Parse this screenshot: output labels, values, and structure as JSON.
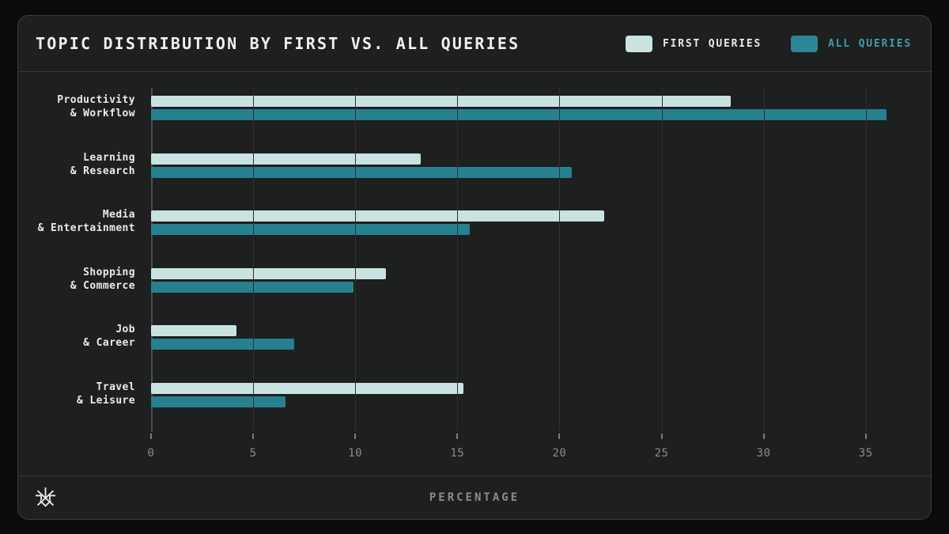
{
  "header": {
    "title": "TOPIC DISTRIBUTION BY FIRST VS. ALL QUERIES",
    "legend": [
      {
        "label": "FIRST QUERIES",
        "swatch_color": "#c9e3e1",
        "text_color": "#e9e9e7"
      },
      {
        "label": "ALL QUERIES",
        "swatch_color": "#2b8698",
        "text_color": "#3f9dad"
      }
    ]
  },
  "footer": {
    "xlabel": "PERCENTAGE",
    "logo_icon": "snowflake-logo"
  },
  "chart_data": {
    "type": "bar",
    "orientation": "horizontal",
    "title": "TOPIC DISTRIBUTION BY FIRST VS. ALL QUERIES",
    "categories": [
      "Productivity & Workflow",
      "Learning & Research",
      "Media & Entertainment",
      "Shopping & Commerce",
      "Job & Career",
      "Travel & Leisure"
    ],
    "category_lines": [
      [
        "Productivity",
        "& Workflow"
      ],
      [
        "Learning",
        "& Research"
      ],
      [
        "Media",
        "& Entertainment"
      ],
      [
        "Shopping",
        "& Commerce"
      ],
      [
        "Job",
        "& Career"
      ],
      [
        "Travel",
        "& Leisure"
      ]
    ],
    "series": [
      {
        "name": "FIRST QUERIES",
        "color": "#c9e3e1",
        "values": [
          28.4,
          13.2,
          22.2,
          11.5,
          4.2,
          15.3
        ]
      },
      {
        "name": "ALL QUERIES",
        "color": "#26808f",
        "values": [
          36.0,
          20.6,
          15.6,
          9.9,
          7.0,
          6.6
        ]
      }
    ],
    "xlabel": "PERCENTAGE",
    "xticks": [
      0,
      5,
      10,
      15,
      20,
      25,
      30,
      35
    ],
    "xlim": [
      0,
      37.8
    ],
    "grid": true,
    "legend_position": "top-right"
  },
  "colors": {
    "page_background": "#0b0b0c",
    "card_background": "#1e1f1f",
    "card_border": "#3a3b3b",
    "gridline": "#2e2f2f",
    "axis_spine": "#4c4d4d",
    "tick_label": "#8b8b8b",
    "category_label": "#eaeae8",
    "title_text": "#f0f0ee",
    "xlabel_text": "#8b8b8b"
  }
}
